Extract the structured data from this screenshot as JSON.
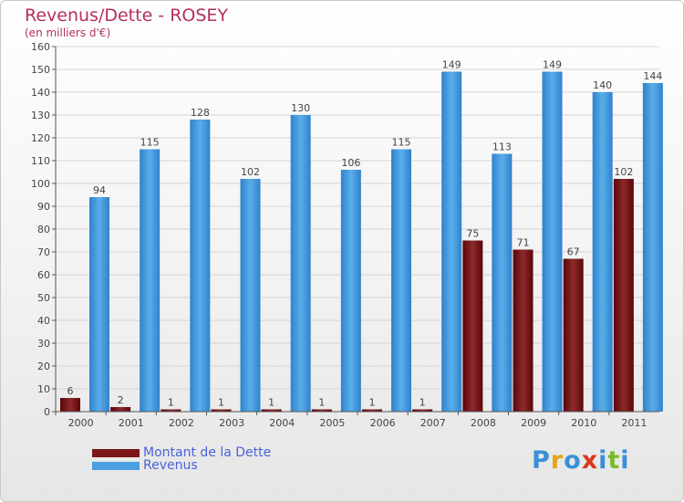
{
  "title": "Revenus/Dette - ROSEY",
  "subtitle": "(en milliers d'€)",
  "logo": {
    "text": "Proxiti",
    "letter_colors": [
      "#3a8fd8",
      "#e8a21a",
      "#3a8fd8",
      "#d8361e",
      "#3a8fd8",
      "#7cb82f",
      "#3a8fd8"
    ]
  },
  "legend": [
    {
      "name": "Montant de la Dette",
      "color": "#7a1518"
    },
    {
      "name": "Revenus",
      "color": "#4a9fe0"
    }
  ],
  "chart_data": {
    "type": "bar",
    "title": "Revenus/Dette - ROSEY",
    "subtitle": "(en milliers d'€)",
    "categories": [
      "2000",
      "2001",
      "2002",
      "2003",
      "2004",
      "2005",
      "2006",
      "2007",
      "2008",
      "2009",
      "2010",
      "2011"
    ],
    "series": [
      {
        "name": "Montant de la Dette",
        "color": "#7a1518",
        "values": [
          6,
          2,
          1,
          1,
          1,
          1,
          1,
          1,
          75,
          71,
          67,
          102
        ]
      },
      {
        "name": "Revenus",
        "color": "#4a9fe0",
        "values": [
          94,
          115,
          128,
          102,
          130,
          106,
          115,
          149,
          113,
          149,
          140,
          144
        ]
      }
    ],
    "ylim": [
      0,
      160
    ],
    "yticks": [
      0,
      10,
      20,
      30,
      40,
      50,
      60,
      70,
      80,
      90,
      100,
      110,
      120,
      130,
      140,
      150,
      160
    ],
    "grid": true,
    "legend_position": "bottom-left",
    "xlabel": "",
    "ylabel": ""
  }
}
